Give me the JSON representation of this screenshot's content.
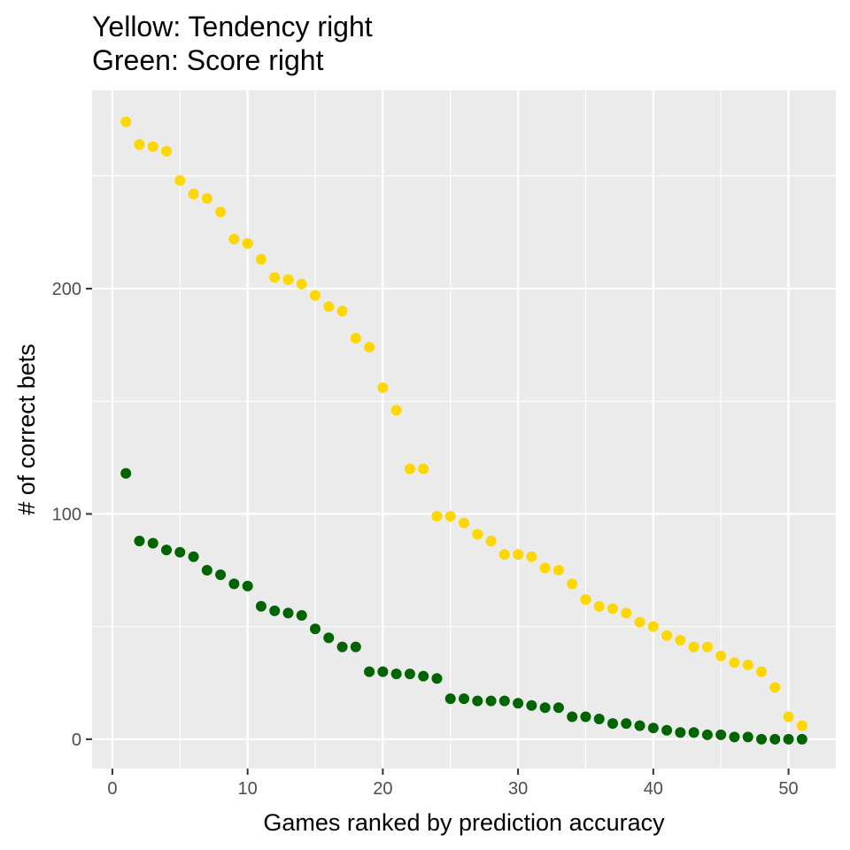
{
  "chart_data": {
    "type": "scatter",
    "title_lines": [
      "Yellow: Tendency right",
      "Green: Score right"
    ],
    "xlabel": "Games ranked by prediction accuracy",
    "ylabel": "# of correct bets",
    "xlim": [
      -1.5,
      53.5
    ],
    "ylim": [
      -13,
      288
    ],
    "x_ticks": [
      0,
      10,
      20,
      30,
      40,
      50
    ],
    "y_ticks": [
      0,
      100,
      200
    ],
    "x_tick_labels": [
      "0",
      "10",
      "20",
      "30",
      "40",
      "50"
    ],
    "y_tick_labels": [
      "0",
      "100",
      "200"
    ],
    "grid": true,
    "panel_color": "#ebebeb",
    "series": [
      {
        "color": "#ffd700",
        "x": [
          1,
          2,
          3,
          4,
          5,
          6,
          7,
          8,
          9,
          10,
          11,
          12,
          13,
          14,
          15,
          16,
          17,
          18,
          19,
          20,
          21,
          22,
          23,
          24,
          25,
          26,
          27,
          28,
          29,
          30,
          31,
          32,
          33,
          34,
          35,
          36,
          37,
          38,
          39,
          40,
          41,
          42,
          43,
          44,
          45,
          46,
          47,
          48,
          49,
          50,
          51
        ],
        "y": [
          274,
          264,
          263,
          261,
          248,
          242,
          240,
          234,
          222,
          220,
          213,
          205,
          204,
          202,
          197,
          192,
          190,
          178,
          174,
          156,
          146,
          120,
          120,
          99,
          99,
          96,
          91,
          88,
          82,
          82,
          81,
          76,
          75,
          69,
          62,
          59,
          58,
          56,
          52,
          50,
          46,
          44,
          41,
          41,
          37,
          34,
          33,
          30,
          23,
          10,
          6
        ]
      },
      {
        "color": "#006400",
        "x": [
          1,
          2,
          3,
          4,
          5,
          6,
          7,
          8,
          9,
          10,
          11,
          12,
          13,
          14,
          15,
          16,
          17,
          18,
          19,
          20,
          21,
          22,
          23,
          24,
          25,
          26,
          27,
          28,
          29,
          30,
          31,
          32,
          33,
          34,
          35,
          36,
          37,
          38,
          39,
          40,
          41,
          42,
          43,
          44,
          45,
          46,
          47,
          48,
          49,
          50,
          51
        ],
        "y": [
          118,
          88,
          87,
          84,
          83,
          81,
          75,
          73,
          69,
          68,
          59,
          57,
          56,
          55,
          49,
          45,
          41,
          41,
          30,
          30,
          29,
          29,
          28,
          27,
          18,
          18,
          17,
          17,
          17,
          16,
          15,
          14,
          14,
          10,
          10,
          9,
          7,
          7,
          6,
          5,
          4,
          3,
          3,
          2,
          2,
          1,
          1,
          0,
          0,
          0,
          0
        ]
      }
    ]
  }
}
